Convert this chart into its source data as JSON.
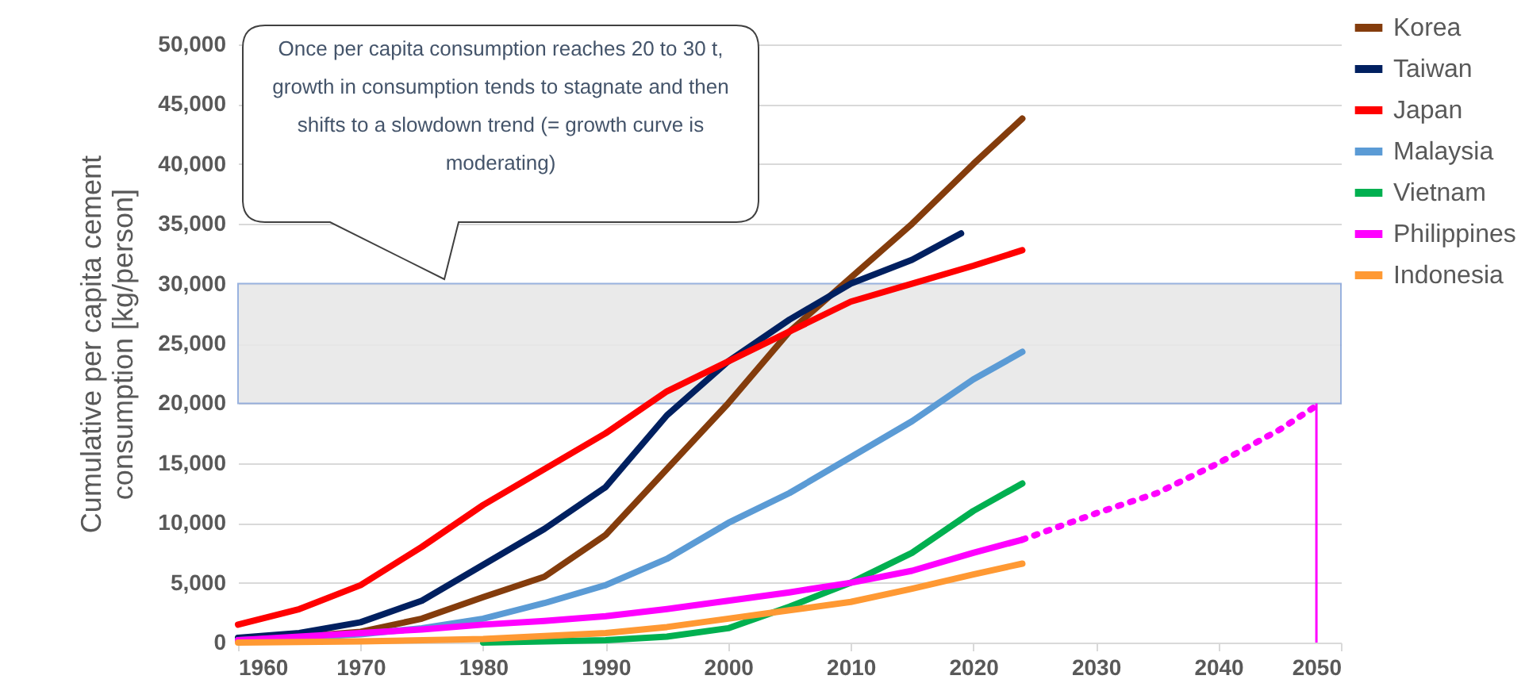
{
  "chart_data": {
    "type": "line",
    "ylabel": "Cumulative  per capita cement\nconsumption [kg/person]",
    "xlim": [
      1960,
      2050
    ],
    "xticks": [
      1960,
      1970,
      1980,
      1990,
      2000,
      2010,
      2020,
      2030,
      2040,
      2050
    ],
    "ylim": [
      0,
      50000
    ],
    "yticks": [
      {
        "value": 0,
        "label": "0"
      },
      {
        "value": 5000,
        "label": "5,000"
      },
      {
        "value": 10000,
        "label": "10,000"
      },
      {
        "value": 15000,
        "label": "15,000"
      },
      {
        "value": 20000,
        "label": "20,000"
      },
      {
        "value": 25000,
        "label": "25,000"
      },
      {
        "value": 30000,
        "label": "30,000"
      },
      {
        "value": 35000,
        "label": "35,000"
      },
      {
        "value": 40000,
        "label": "40,000"
      },
      {
        "value": 45000,
        "label": "45,000"
      },
      {
        "value": 50000,
        "label": "50,000"
      }
    ],
    "grid": "y",
    "legend": "top right",
    "line_style": "solid",
    "annotations": [
      "Once per capita consumption reaches 20 to 30 t, growth in consumption tends to stagnate and then shifts to a slowdown trend (= growth curve is moderating)"
    ],
    "bands": [
      {
        "axis": "y",
        "from": 20000,
        "to": 30000,
        "color": "#e8e8e8"
      }
    ],
    "ref_lines": [
      {
        "axis": "x",
        "value": 2048,
        "color": "#ff00ff"
      }
    ],
    "series": [
      {
        "name": "Korea",
        "color": "#843c0c",
        "x": [
          1960,
          1965,
          1970,
          1975,
          1980,
          1985,
          1990,
          1995,
          2000,
          2005,
          2010,
          2015,
          2020,
          2024
        ],
        "values": [
          300,
          500,
          900,
          2000,
          3800,
          5500,
          9000,
          14500,
          20000,
          26000,
          30500,
          35000,
          40000,
          43800
        ]
      },
      {
        "name": "Taiwan",
        "color": "#002060",
        "x": [
          1960,
          1965,
          1970,
          1975,
          1980,
          1985,
          1990,
          1995,
          2000,
          2005,
          2010,
          2015,
          2019
        ],
        "values": [
          400,
          800,
          1700,
          3500,
          6500,
          9500,
          13000,
          19000,
          23500,
          27000,
          30000,
          32000,
          34200
        ]
      },
      {
        "name": "Japan",
        "color": "#ff0000",
        "x": [
          1960,
          1965,
          1970,
          1975,
          1980,
          1985,
          1990,
          1995,
          2000,
          2005,
          2010,
          2015,
          2020,
          2024
        ],
        "values": [
          1500,
          2800,
          4800,
          8000,
          11500,
          14500,
          17500,
          21000,
          23500,
          26000,
          28500,
          30000,
          31500,
          32800
        ]
      },
      {
        "name": "Malaysia",
        "color": "#5b9bd5",
        "x": [
          1960,
          1965,
          1970,
          1975,
          1980,
          1985,
          1990,
          1995,
          2000,
          2005,
          2010,
          2015,
          2020,
          2024
        ],
        "values": [
          200,
          400,
          700,
          1200,
          2000,
          3300,
          4800,
          7000,
          10000,
          12500,
          15500,
          18500,
          22000,
          24300
        ]
      },
      {
        "name": "Vietnam",
        "color": "#00b050",
        "x": [
          1980,
          1985,
          1990,
          1995,
          2000,
          2005,
          2010,
          2015,
          2020,
          2024
        ],
        "values": [
          0,
          100,
          200,
          500,
          1200,
          3000,
          5000,
          7500,
          11000,
          13300
        ]
      },
      {
        "name": "Philippines",
        "color": "#ff00ff",
        "x": [
          1960,
          1965,
          1970,
          1975,
          1980,
          1985,
          1990,
          1995,
          2000,
          2005,
          2010,
          2015,
          2020,
          2024
        ],
        "values": [
          200,
          500,
          800,
          1100,
          1500,
          1800,
          2200,
          2800,
          3500,
          4200,
          5000,
          6000,
          7500,
          8600
        ]
      },
      {
        "name": "Indonesia",
        "color": "#ff9933",
        "x": [
          1960,
          1970,
          1980,
          1990,
          1995,
          2000,
          2005,
          2010,
          2015,
          2020,
          2024
        ],
        "values": [
          0,
          100,
          300,
          800,
          1300,
          2000,
          2700,
          3400,
          4500,
          5700,
          6600
        ]
      },
      {
        "color": "#ff00ff",
        "line_style": "dotted",
        "x": [
          2024,
          2030,
          2035,
          2040,
          2045,
          2048
        ],
        "values": [
          8600,
          10800,
          12500,
          15000,
          17800,
          19800
        ]
      }
    ]
  }
}
